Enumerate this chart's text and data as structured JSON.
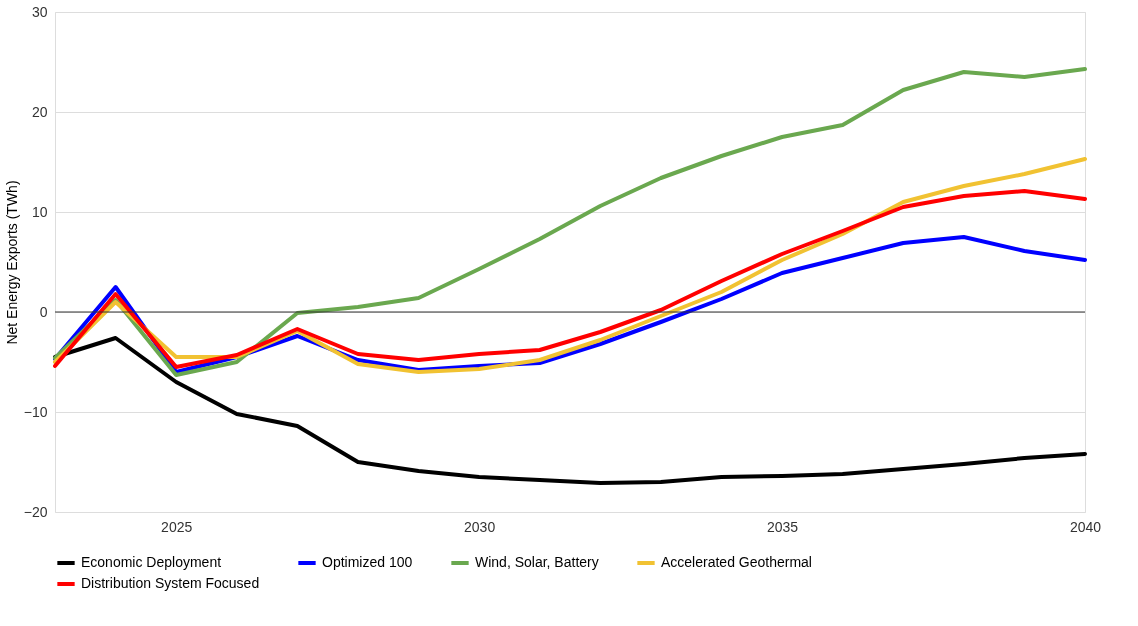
{
  "chart_data": {
    "type": "line",
    "ylabel": "Net Energy Exports (TWh)",
    "x": [
      2023,
      2024,
      2025,
      2026,
      2027,
      2028,
      2029,
      2030,
      2031,
      2032,
      2033,
      2034,
      2035,
      2036,
      2037,
      2038,
      2039,
      2040
    ],
    "series": [
      {
        "name": "Economic Deployment",
        "color": "#000000",
        "values": [
          -4.5,
          -2.6,
          -7,
          -10.2,
          -11.4,
          -15,
          -15.9,
          -16.5,
          -16.8,
          -17.1,
          -17,
          -16.5,
          -16.4,
          -16.2,
          -15.7,
          -15.2,
          -14.6,
          -14.2
        ]
      },
      {
        "name": "Optimized 100",
        "color": "#0000ff",
        "values": [
          -4.7,
          2.5,
          -6,
          -4.5,
          -2.4,
          -4.8,
          -5.8,
          -5.4,
          -5.1,
          -3.2,
          -1,
          1.3,
          3.9,
          5.4,
          6.9,
          7.5,
          6.1,
          5.2
        ]
      },
      {
        "name": "Wind, Solar, Battery",
        "color": "#6aa84f",
        "values": [
          -4.6,
          1.2,
          -6.3,
          -5,
          -0.1,
          0.5,
          1.4,
          4.3,
          7.3,
          10.6,
          13.4,
          15.6,
          17.5,
          18.7,
          22.2,
          24,
          23.5,
          24.3
        ]
      },
      {
        "name": "Accelerated Geothermal",
        "color": "#f1c232",
        "values": [
          -5,
          1,
          -4.5,
          -4.5,
          -1.9,
          -5.2,
          -6,
          -5.7,
          -4.8,
          -2.8,
          -0.4,
          2,
          5.2,
          7.8,
          11,
          12.6,
          13.8,
          15.3
        ]
      },
      {
        "name": "Distribution System Focused",
        "color": "#ff0000",
        "values": [
          -5.4,
          1.8,
          -5.5,
          -4.3,
          -1.7,
          -4.2,
          -4.8,
          -4.2,
          -3.8,
          -2,
          0.2,
          3.1,
          5.8,
          8.1,
          10.5,
          11.6,
          12.1,
          11.3
        ]
      }
    ],
    "xlim": [
      2023,
      2040
    ],
    "xticks": [
      2025,
      2030,
      2035,
      2040
    ],
    "ylim": [
      -20,
      30
    ],
    "yticks": [
      -20,
      -10,
      0,
      10,
      20,
      30
    ],
    "ref_lines": [
      {
        "axis": "y",
        "value": 0,
        "color": "#333333"
      }
    ],
    "grid": "y",
    "legend": "bottom",
    "marker": "none",
    "line_style": "solid"
  }
}
